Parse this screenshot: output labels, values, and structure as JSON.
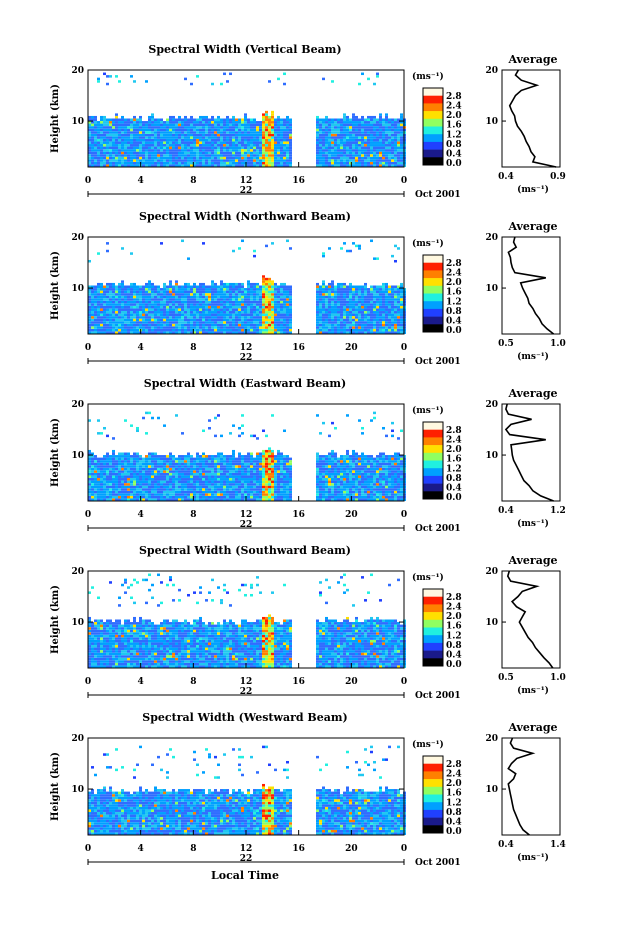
{
  "figure": {
    "date_label": "Oct 2001",
    "xlabel": "Local Time",
    "colorbar_unit": "(ms⁻¹)",
    "colorbar_ticks": [
      "2.8",
      "2.4",
      "2.0",
      "1.6",
      "1.2",
      "0.8",
      "0.4",
      "0.0"
    ],
    "colorbar_colors": [
      "#fff8e0",
      "#ff2000",
      "#ff8000",
      "#ffe000",
      "#90ff60",
      "#20f0e0",
      "#00a0ff",
      "#2040ff",
      "#1a1a8a",
      "#000000"
    ],
    "side_title": "Average",
    "side_xlabel": "(ms⁻¹)"
  },
  "chart_data": [
    {
      "type": "heatmap",
      "title": "Spectral Width (Vertical Beam)",
      "ylabel": "Height (km)",
      "x_ticks": [
        "0",
        "4",
        "8",
        "12",
        "16",
        "20",
        "0"
      ],
      "y_ticks": [
        "20",
        "10"
      ],
      "xlim": [
        0,
        24
      ],
      "ylim": [
        1,
        20
      ],
      "day_label": "22",
      "data_gap_hours": [
        15.3,
        17.3
      ],
      "cloud_top_km": 10.5,
      "upper_layer_km": [
        17,
        19
      ],
      "average_profile": {
        "xlim": [
          0.3,
          0.9
        ],
        "x_ticks": [
          "0.4",
          "0.9"
        ],
        "y_ticks": [
          "20",
          "10"
        ],
        "height_km": [
          1,
          2,
          3,
          4,
          5,
          6,
          7,
          8,
          9,
          10,
          11,
          12,
          13,
          14,
          15,
          16,
          17,
          18,
          19,
          20
        ],
        "value": [
          0.86,
          0.62,
          0.64,
          0.6,
          0.58,
          0.55,
          0.53,
          0.5,
          0.46,
          0.44,
          0.43,
          0.4,
          0.38,
          0.41,
          0.44,
          0.5,
          0.66,
          0.5,
          0.44,
          0.47
        ]
      }
    },
    {
      "type": "heatmap",
      "title": "Spectral Width (Northward Beam)",
      "ylabel": "Height (km)",
      "x_ticks": [
        "0",
        "4",
        "8",
        "12",
        "16",
        "20",
        "0"
      ],
      "y_ticks": [
        "20",
        "10"
      ],
      "xlim": [
        0,
        24
      ],
      "ylim": [
        1,
        20
      ],
      "day_label": "22",
      "data_gap_hours": [
        15.3,
        17.3
      ],
      "cloud_top_km": 10.5,
      "upper_layer_km": [
        15,
        19
      ],
      "average_profile": {
        "xlim": [
          0.2,
          1.1
        ],
        "x_ticks": [
          "0.5",
          "1.0"
        ],
        "y_ticks": [
          "20",
          "10"
        ],
        "height_km": [
          1,
          2,
          3,
          4,
          5,
          6,
          7,
          8,
          9,
          10,
          11,
          12,
          13,
          14,
          15,
          16,
          17,
          18,
          19,
          20
        ],
        "value": [
          1.0,
          0.9,
          0.82,
          0.78,
          0.72,
          0.68,
          0.62,
          0.6,
          0.56,
          0.52,
          0.49,
          0.88,
          0.4,
          0.36,
          0.34,
          0.33,
          0.3,
          0.42,
          0.38,
          0.4
        ]
      }
    },
    {
      "type": "heatmap",
      "title": "Spectral Width (Eastward Beam)",
      "ylabel": "Height (km)",
      "x_ticks": [
        "0",
        "4",
        "8",
        "12",
        "16",
        "20",
        "0"
      ],
      "y_ticks": [
        "20",
        "10"
      ],
      "xlim": [
        0,
        24
      ],
      "ylim": [
        1,
        20
      ],
      "day_label": "22",
      "data_gap_hours": [
        15.3,
        17.3
      ],
      "cloud_top_km": 10,
      "upper_layer_km": [
        13,
        18
      ],
      "average_profile": {
        "xlim": [
          0.3,
          1.2
        ],
        "x_ticks": [
          "0.4",
          "1.2"
        ],
        "y_ticks": [
          "20",
          "10"
        ],
        "height_km": [
          1,
          2,
          3,
          4,
          5,
          6,
          7,
          8,
          9,
          10,
          11,
          12,
          13,
          14,
          15,
          16,
          17,
          18,
          19,
          20
        ],
        "value": [
          1.1,
          0.9,
          0.78,
          0.72,
          0.64,
          0.6,
          0.56,
          0.52,
          0.48,
          0.46,
          0.45,
          0.44,
          0.98,
          0.42,
          0.36,
          0.44,
          0.76,
          0.4,
          0.36,
          0.38
        ]
      }
    },
    {
      "type": "heatmap",
      "title": "Spectral Width (Southward Beam)",
      "ylabel": "Height (km)",
      "x_ticks": [
        "0",
        "4",
        "8",
        "12",
        "16",
        "20",
        "0"
      ],
      "y_ticks": [
        "20",
        "10"
      ],
      "xlim": [
        0,
        24
      ],
      "ylim": [
        1,
        20
      ],
      "day_label": "22",
      "data_gap_hours": [
        15.3,
        17.3
      ],
      "cloud_top_km": 10,
      "upper_layer_km": [
        13,
        19
      ],
      "average_profile": {
        "xlim": [
          0.3,
          1.1
        ],
        "x_ticks": [
          "0.5",
          "1.0"
        ],
        "y_ticks": [
          "20",
          "10"
        ],
        "height_km": [
          1,
          2,
          3,
          4,
          5,
          6,
          7,
          8,
          9,
          10,
          11,
          12,
          13,
          14,
          15,
          16,
          17,
          18,
          19,
          20
        ],
        "value": [
          1.0,
          0.95,
          0.88,
          0.82,
          0.76,
          0.72,
          0.66,
          0.62,
          0.58,
          0.54,
          0.58,
          0.62,
          0.5,
          0.44,
          0.52,
          0.58,
          0.78,
          0.42,
          0.38,
          0.4
        ]
      }
    },
    {
      "type": "heatmap",
      "title": "Spectral Width (Westward Beam)",
      "ylabel": "Height (km)",
      "x_ticks": [
        "0",
        "4",
        "8",
        "12",
        "16",
        "20",
        "0"
      ],
      "y_ticks": [
        "20",
        "10"
      ],
      "xlim": [
        0,
        24
      ],
      "ylim": [
        1,
        20
      ],
      "day_label": "22",
      "data_gap_hours": [
        15.3,
        17.3
      ],
      "cloud_top_km": 9.5,
      "upper_layer_km": [
        12,
        18
      ],
      "average_profile": {
        "xlim": [
          0.3,
          1.4
        ],
        "x_ticks": [
          "0.4",
          "1.4"
        ],
        "y_ticks": [
          "20",
          "10"
        ],
        "height_km": [
          1,
          2,
          3,
          4,
          5,
          6,
          7,
          8,
          9,
          10,
          11,
          12,
          13,
          14,
          15,
          16,
          17,
          18,
          19,
          20
        ],
        "value": [
          0.82,
          0.7,
          0.64,
          0.6,
          0.56,
          0.52,
          0.5,
          0.48,
          0.46,
          0.44,
          0.42,
          0.52,
          0.56,
          0.42,
          0.48,
          0.58,
          0.88,
          0.52,
          0.46,
          0.5
        ]
      }
    }
  ]
}
